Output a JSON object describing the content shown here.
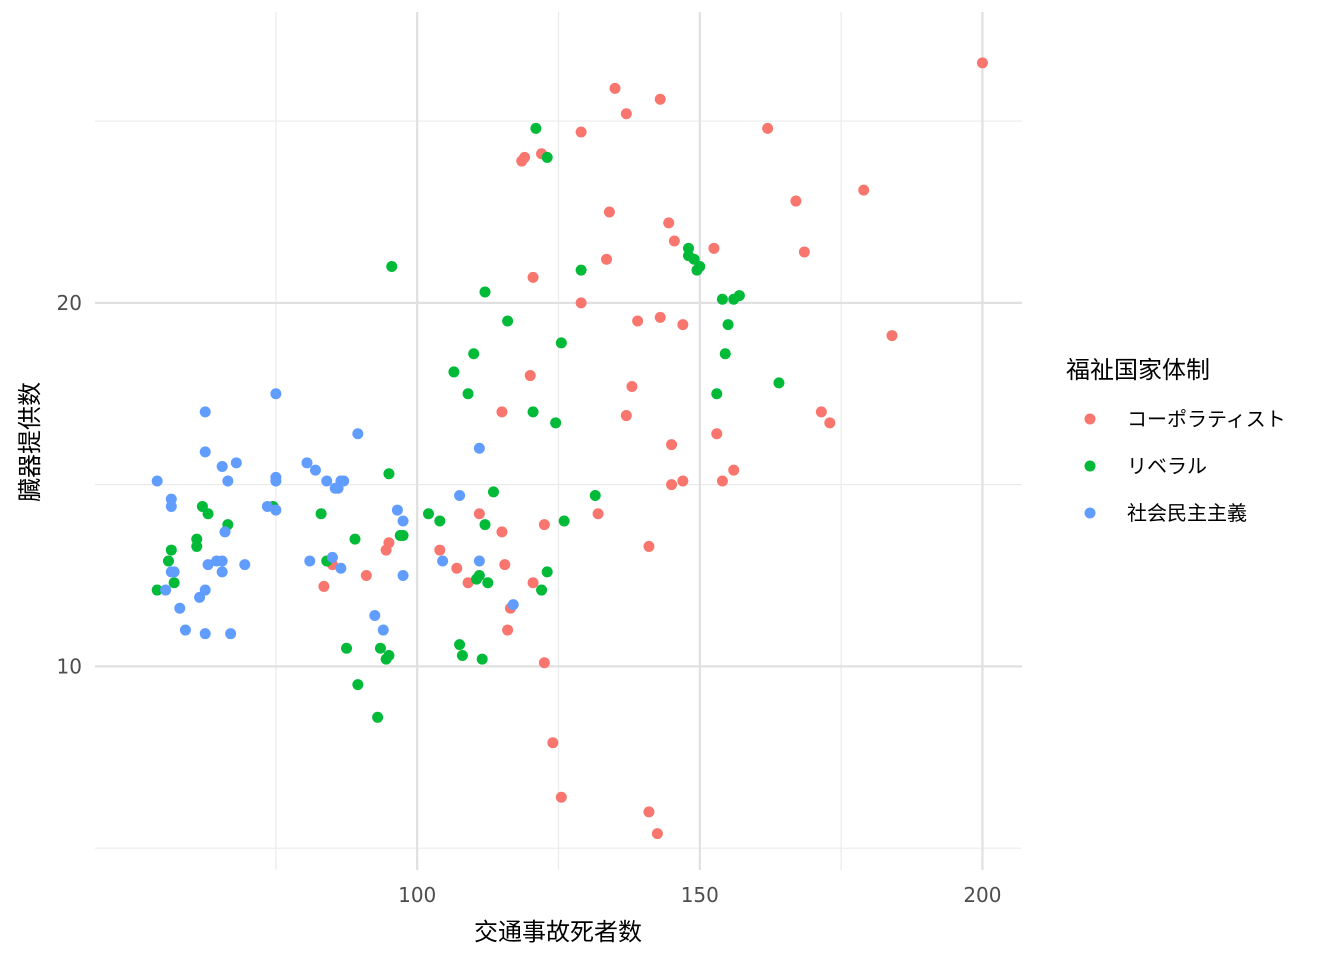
{
  "chart_data": {
    "type": "scatter",
    "title": "",
    "xlabel": "交通事故死者数",
    "ylabel": "臓器提供数",
    "xlim": [
      43,
      207
    ],
    "ylim": [
      4.4,
      28.0
    ],
    "x_ticks": [
      100,
      150,
      200
    ],
    "x_tick_labels": [
      "100",
      "150",
      "200"
    ],
    "y_ticks": [
      10,
      20
    ],
    "y_tick_labels": [
      "10",
      "20"
    ],
    "x_minor": [
      75,
      125,
      175
    ],
    "y_minor": [
      5,
      15,
      25
    ],
    "grid": true,
    "legend": {
      "title": "福祉国家体制",
      "position": "right"
    },
    "series": [
      {
        "name": "コーポラティスト",
        "color": "#F8766D",
        "points": [
          [
            200.0,
            26.6
          ],
          [
            162.0,
            24.8
          ],
          [
            135.0,
            25.9
          ],
          [
            137.0,
            25.2
          ],
          [
            143.0,
            25.6
          ],
          [
            129.0,
            24.7
          ],
          [
            122.0,
            24.1
          ],
          [
            119.0,
            24.0
          ],
          [
            118.5,
            23.9
          ],
          [
            167.0,
            22.8
          ],
          [
            179.0,
            23.1
          ],
          [
            134.0,
            22.5
          ],
          [
            144.5,
            22.2
          ],
          [
            145.5,
            21.7
          ],
          [
            152.5,
            21.5
          ],
          [
            168.5,
            21.4
          ],
          [
            133.5,
            21.2
          ],
          [
            120.5,
            20.7
          ],
          [
            129.0,
            20.0
          ],
          [
            139.0,
            19.5
          ],
          [
            143.0,
            19.6
          ],
          [
            147.0,
            19.4
          ],
          [
            184.0,
            19.1
          ],
          [
            120.0,
            18.0
          ],
          [
            138.0,
            17.7
          ],
          [
            115.0,
            17.0
          ],
          [
            137.0,
            16.9
          ],
          [
            171.5,
            17.0
          ],
          [
            173.0,
            16.7
          ],
          [
            153.0,
            16.4
          ],
          [
            145.0,
            16.1
          ],
          [
            156.0,
            15.4
          ],
          [
            147.0,
            15.1
          ],
          [
            145.0,
            15.0
          ],
          [
            154.0,
            15.1
          ],
          [
            111.0,
            14.2
          ],
          [
            132.0,
            14.2
          ],
          [
            122.5,
            13.9
          ],
          [
            115.0,
            13.7
          ],
          [
            95.0,
            13.4
          ],
          [
            94.5,
            13.2
          ],
          [
            104.0,
            13.2
          ],
          [
            141.0,
            13.3
          ],
          [
            107.0,
            12.7
          ],
          [
            115.5,
            12.8
          ],
          [
            85.0,
            12.8
          ],
          [
            91.0,
            12.5
          ],
          [
            109.0,
            12.3
          ],
          [
            120.5,
            12.3
          ],
          [
            83.5,
            12.2
          ],
          [
            116.5,
            11.6
          ],
          [
            116.0,
            11.0
          ],
          [
            122.5,
            10.1
          ],
          [
            124.0,
            7.9
          ],
          [
            125.5,
            6.4
          ],
          [
            141.0,
            6.0
          ],
          [
            142.5,
            5.4
          ]
        ]
      },
      {
        "name": "リベラル",
        "color": "#00BA38",
        "points": [
          [
            121.0,
            24.8
          ],
          [
            123.0,
            24.0
          ],
          [
            95.5,
            21.0
          ],
          [
            148.0,
            21.5
          ],
          [
            148.0,
            21.3
          ],
          [
            149.0,
            21.2
          ],
          [
            150.0,
            21.0
          ],
          [
            149.5,
            20.9
          ],
          [
            129.0,
            20.9
          ],
          [
            112.0,
            20.3
          ],
          [
            154.0,
            20.1
          ],
          [
            156.0,
            20.1
          ],
          [
            157.0,
            20.2
          ],
          [
            116.0,
            19.5
          ],
          [
            155.0,
            19.4
          ],
          [
            125.5,
            18.9
          ],
          [
            154.5,
            18.6
          ],
          [
            110.0,
            18.6
          ],
          [
            106.5,
            18.1
          ],
          [
            164.0,
            17.8
          ],
          [
            109.0,
            17.5
          ],
          [
            153.0,
            17.5
          ],
          [
            120.5,
            17.0
          ],
          [
            124.5,
            16.7
          ],
          [
            95.0,
            15.3
          ],
          [
            113.5,
            14.8
          ],
          [
            131.5,
            14.7
          ],
          [
            62.0,
            14.4
          ],
          [
            63.0,
            14.2
          ],
          [
            74.5,
            14.4
          ],
          [
            83.0,
            14.2
          ],
          [
            102.0,
            14.2
          ],
          [
            104.0,
            14.0
          ],
          [
            112.0,
            13.9
          ],
          [
            126.0,
            14.0
          ],
          [
            66.5,
            13.9
          ],
          [
            61.0,
            13.5
          ],
          [
            61.0,
            13.3
          ],
          [
            89.0,
            13.5
          ],
          [
            97.0,
            13.6
          ],
          [
            97.5,
            13.6
          ],
          [
            56.5,
            13.2
          ],
          [
            56.0,
            12.9
          ],
          [
            84.0,
            12.9
          ],
          [
            111.0,
            12.5
          ],
          [
            123.0,
            12.6
          ],
          [
            110.5,
            12.4
          ],
          [
            112.5,
            12.3
          ],
          [
            57.0,
            12.3
          ],
          [
            54.0,
            12.1
          ],
          [
            122.0,
            12.1
          ],
          [
            107.5,
            10.6
          ],
          [
            87.5,
            10.5
          ],
          [
            93.5,
            10.5
          ],
          [
            95.0,
            10.3
          ],
          [
            108.0,
            10.3
          ],
          [
            111.5,
            10.2
          ],
          [
            94.5,
            10.2
          ],
          [
            89.5,
            9.5
          ],
          [
            93.0,
            8.6
          ]
        ]
      },
      {
        "name": "社会民主主義",
        "color": "#619CFF",
        "points": [
          [
            62.5,
            17.0
          ],
          [
            75.0,
            17.5
          ],
          [
            89.5,
            16.4
          ],
          [
            62.5,
            15.9
          ],
          [
            111.0,
            16.0
          ],
          [
            68.0,
            15.6
          ],
          [
            65.5,
            15.5
          ],
          [
            80.5,
            15.6
          ],
          [
            82.0,
            15.4
          ],
          [
            54.0,
            15.1
          ],
          [
            66.5,
            15.1
          ],
          [
            75.0,
            15.2
          ],
          [
            75.0,
            15.1
          ],
          [
            84.0,
            15.1
          ],
          [
            87.0,
            15.1
          ],
          [
            86.5,
            15.1
          ],
          [
            86.0,
            14.9
          ],
          [
            85.5,
            14.9
          ],
          [
            56.5,
            14.6
          ],
          [
            56.5,
            14.4
          ],
          [
            107.5,
            14.7
          ],
          [
            73.5,
            14.4
          ],
          [
            75.0,
            14.3
          ],
          [
            96.5,
            14.3
          ],
          [
            97.5,
            14.0
          ],
          [
            66.0,
            13.7
          ],
          [
            63.0,
            12.8
          ],
          [
            64.5,
            12.9
          ],
          [
            65.5,
            12.9
          ],
          [
            81.0,
            12.9
          ],
          [
            85.0,
            13.0
          ],
          [
            104.5,
            12.9
          ],
          [
            111.0,
            12.9
          ],
          [
            69.5,
            12.8
          ],
          [
            56.5,
            12.6
          ],
          [
            57.0,
            12.6
          ],
          [
            65.5,
            12.6
          ],
          [
            86.5,
            12.7
          ],
          [
            97.5,
            12.5
          ],
          [
            55.5,
            12.1
          ],
          [
            62.5,
            12.1
          ],
          [
            61.5,
            11.9
          ],
          [
            117.0,
            11.7
          ],
          [
            58.0,
            11.6
          ],
          [
            92.5,
            11.4
          ],
          [
            59.0,
            11.0
          ],
          [
            62.5,
            10.9
          ],
          [
            67.0,
            10.9
          ],
          [
            94.0,
            11.0
          ]
        ]
      }
    ]
  }
}
